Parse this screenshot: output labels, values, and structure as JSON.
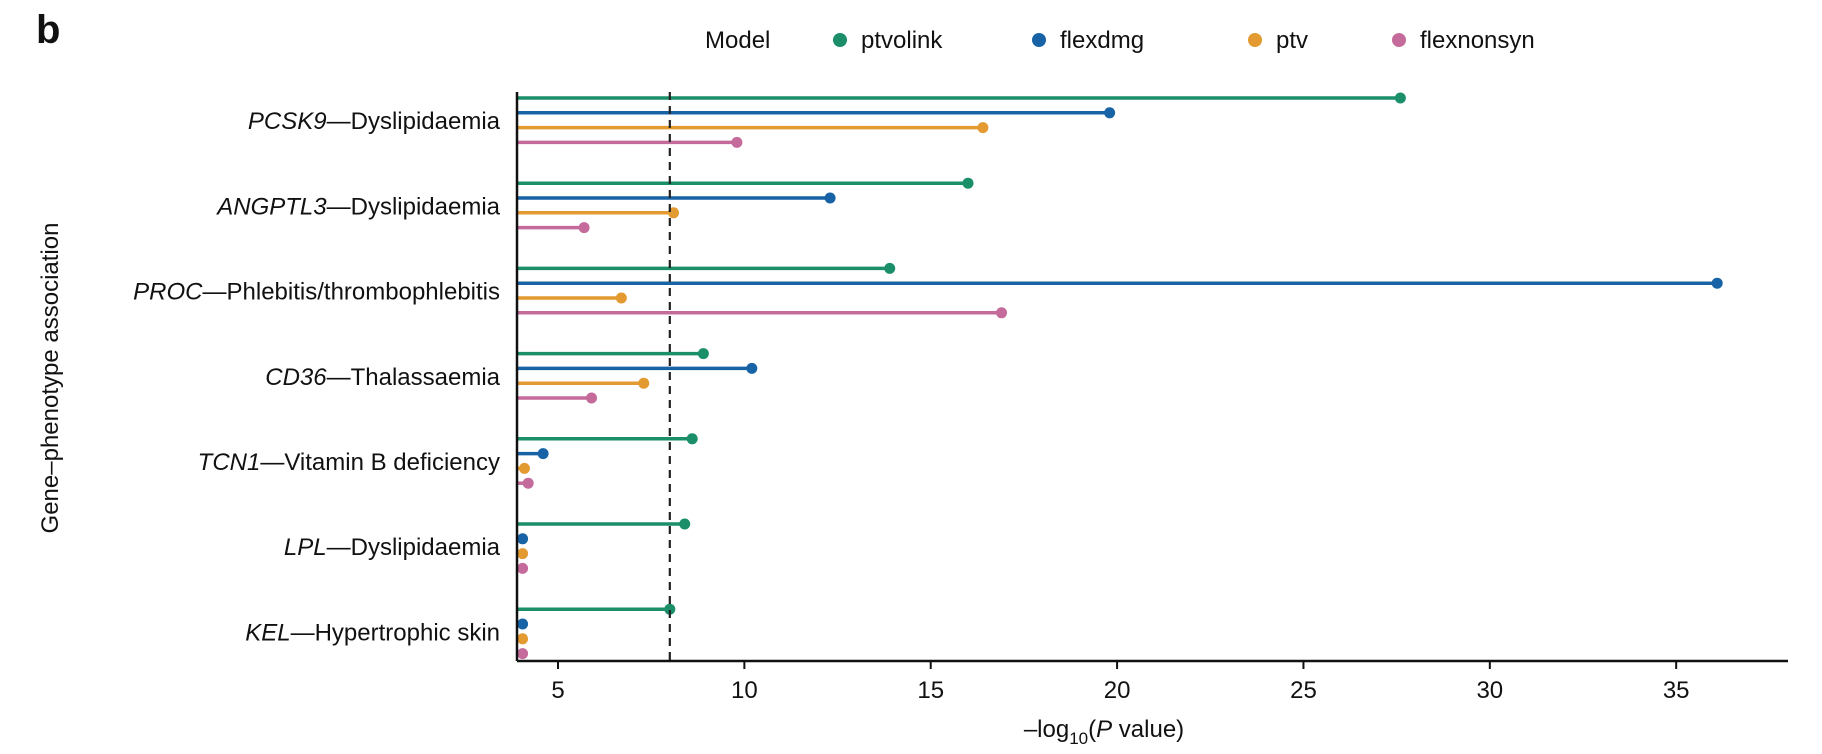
{
  "panel_label": "b",
  "chart_data": {
    "type": "lollipop",
    "orientation": "horizontal",
    "xlabel_prefix": "–log",
    "xlabel_sub": "10",
    "xlabel_open": "(",
    "xlabel_italic": "P",
    "xlabel_rest": " value)",
    "ylabel": "Gene–phenotype association",
    "legend_title": "Model",
    "legend_position": "top",
    "xlim": [
      3.9,
      38.0
    ],
    "xticks": [
      5,
      10,
      15,
      20,
      25,
      30,
      35
    ],
    "threshold": 8,
    "threshold_style": "dashed",
    "series": [
      {
        "name": "ptvolink",
        "color": "#1a8f6a"
      },
      {
        "name": "flexdmg",
        "color": "#1763a6"
      },
      {
        "name": "ptv",
        "color": "#e39a30"
      },
      {
        "name": "flexnonsyn",
        "color": "#c56b9b"
      }
    ],
    "categories": [
      {
        "gene": "PCSK9",
        "phenotype": "Dyslipidaemia",
        "values": [
          27.6,
          19.8,
          16.4,
          9.8
        ]
      },
      {
        "gene": "ANGPTL3",
        "phenotype": "Dyslipidaemia",
        "values": [
          16.0,
          12.3,
          8.1,
          5.7
        ]
      },
      {
        "gene": "PROC",
        "phenotype": "Phlebitis/thrombophlebitis",
        "values": [
          13.9,
          36.1,
          6.7,
          16.9
        ]
      },
      {
        "gene": "CD36",
        "phenotype": "Thalassaemia",
        "values": [
          8.9,
          10.2,
          7.3,
          5.9
        ]
      },
      {
        "gene": "TCN1",
        "phenotype": "Vitamin B deficiency",
        "values": [
          8.6,
          4.6,
          4.1,
          4.2
        ]
      },
      {
        "gene": "LPL",
        "phenotype": "Dyslipidaemia",
        "values": [
          8.4,
          4.05,
          4.05,
          4.05
        ]
      },
      {
        "gene": "KEL",
        "phenotype": "Hypertrophic skin",
        "values": [
          8.0,
          4.05,
          4.05,
          4.05
        ]
      }
    ]
  }
}
